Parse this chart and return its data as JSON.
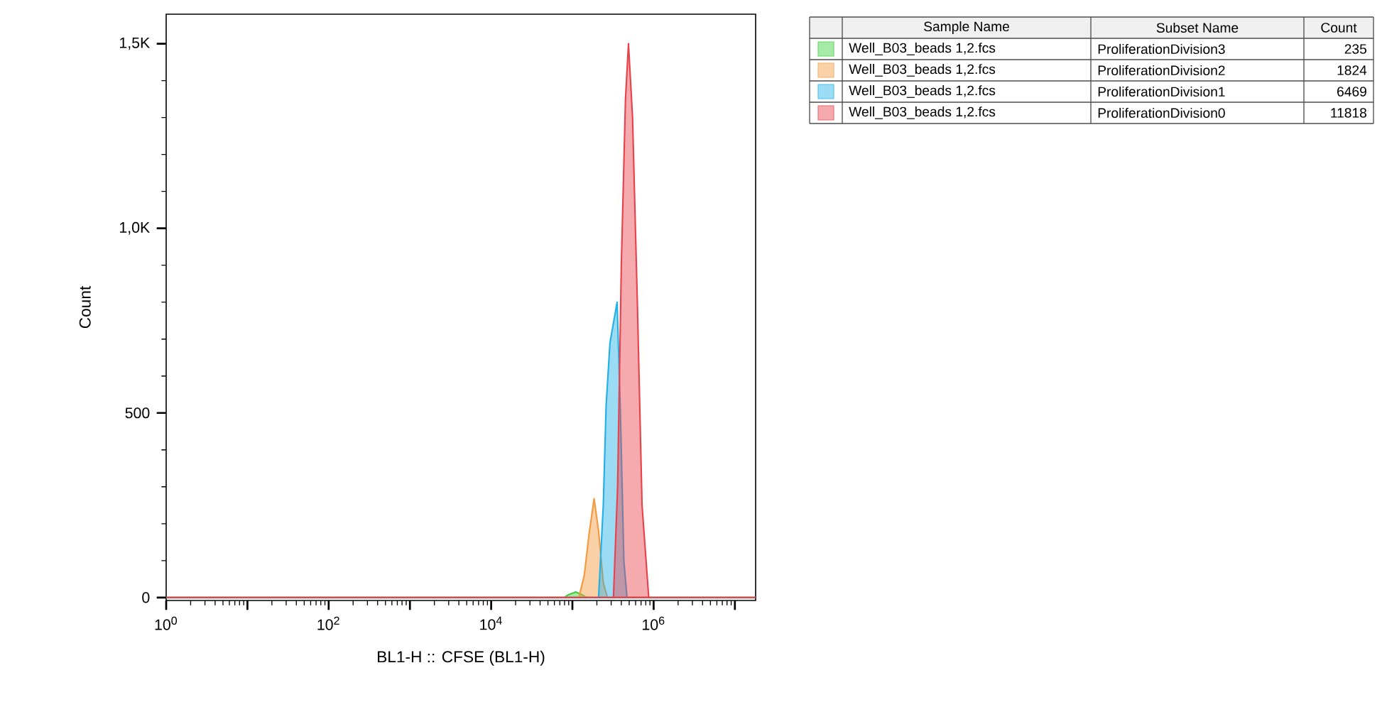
{
  "chart_data": {
    "type": "area",
    "xlabel": "BL1-H :: CFSE (BL1-H)",
    "ylabel": "Count",
    "log": "x",
    "legend": "top right",
    "xlim": [
      1,
      18000000
    ],
    "ylim": [
      -8,
      1580
    ],
    "xticks": [
      {
        "value": 1,
        "label": "10$^{0}$"
      },
      {
        "value": 10,
        "label": null
      },
      {
        "value": 100,
        "label": "10$^{2}$"
      },
      {
        "value": 1000,
        "label": null
      },
      {
        "value": 10000,
        "label": "10$^{4}$"
      },
      {
        "value": 100000,
        "label": null
      },
      {
        "value": 1000000,
        "label": "10$^{6}$"
      },
      {
        "value": 10000000,
        "label": null
      }
    ],
    "yticks": [
      0,
      500,
      {
        "value": 1000,
        "label": "1,0K"
      },
      {
        "value": 1500,
        "label": "1,5K"
      }
    ],
    "legend_title": "Subset Name",
    "annotations": [
      "Sample Name",
      "Count",
      "Well_B03_beads 1,2.fcs",
      "235",
      "Well_B03_beads 1,2.fcs",
      "1824",
      "Well_B03_beads 1,2.fcs",
      "6469",
      "Well_B03_beads 1,2.fcs",
      "11818"
    ],
    "series": [
      {
        "name": "ProliferationDivision3",
        "color": "#3ccf3c",
        "x": [
          1,
          79000,
          90000,
          110000,
          130000,
          150000,
          18000000
        ],
        "values": [
          0,
          0,
          8,
          15,
          8,
          0,
          0
        ]
      },
      {
        "name": "ProliferationDivision2",
        "color": "#f59a3c",
        "x": [
          1,
          120000,
          140000,
          160000,
          185000,
          210000,
          240000,
          270000,
          18000000
        ],
        "values": [
          0,
          0,
          60,
          170,
          268,
          180,
          40,
          0,
          0
        ]
      },
      {
        "name": "ProliferationDivision1",
        "color": "#22b0e6",
        "x": [
          1,
          210000,
          240000,
          260000,
          290000,
          330000,
          355000,
          390000,
          430000,
          470000,
          18000000
        ],
        "values": [
          0,
          0,
          250,
          520,
          690,
          760,
          800,
          500,
          100,
          0,
          0
        ]
      },
      {
        "name": "ProliferationDivision0",
        "color": "#e8424c",
        "x": [
          1,
          320000,
          360000,
          400000,
          450000,
          490000,
          550000,
          630000,
          720000,
          870000,
          18000000
        ],
        "values": [
          0,
          0,
          300,
          900,
          1350,
          1500,
          1300,
          800,
          250,
          0,
          0
        ]
      }
    ]
  }
}
